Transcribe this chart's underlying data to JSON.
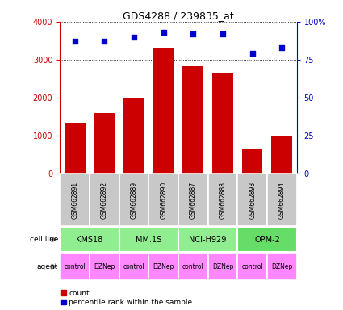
{
  "title": "GDS4288 / 239835_at",
  "samples": [
    "GSM662891",
    "GSM662892",
    "GSM662889",
    "GSM662890",
    "GSM662887",
    "GSM662888",
    "GSM662893",
    "GSM662894"
  ],
  "counts": [
    1350,
    1600,
    2000,
    3300,
    2820,
    2640,
    650,
    1000
  ],
  "percentile_ranks": [
    87,
    87,
    90,
    93,
    92,
    92,
    79,
    83
  ],
  "cell_lines": [
    {
      "label": "KMS18",
      "start": 0,
      "end": 2,
      "color": "#90EE90"
    },
    {
      "label": "MM.1S",
      "start": 2,
      "end": 4,
      "color": "#90EE90"
    },
    {
      "label": "NCI-H929",
      "start": 4,
      "end": 6,
      "color": "#90EE90"
    },
    {
      "label": "OPM-2",
      "start": 6,
      "end": 8,
      "color": "#66DD66"
    }
  ],
  "agents": [
    "control",
    "DZNep",
    "control",
    "DZNep",
    "control",
    "DZNep",
    "control",
    "DZNep"
  ],
  "bar_color": "#CC0000",
  "scatter_color": "#0000CC",
  "left_axis_color": "#CC0000",
  "right_axis_color": "#0000CC",
  "ylim_left": [
    0,
    4000
  ],
  "ylim_right": [
    0,
    100
  ],
  "yticks_left": [
    0,
    1000,
    2000,
    3000,
    4000
  ],
  "ytick_labels_left": [
    "0",
    "1000",
    "2000",
    "3000",
    "4000"
  ],
  "yticks_right": [
    0,
    25,
    50,
    75,
    100
  ],
  "ytick_labels_right": [
    "0",
    "25",
    "50",
    "75",
    "100%"
  ],
  "sample_bg_color": "#C8C8C8",
  "agent_color": "#FF88FF",
  "legend_items": [
    "count",
    "percentile rank within the sample"
  ]
}
